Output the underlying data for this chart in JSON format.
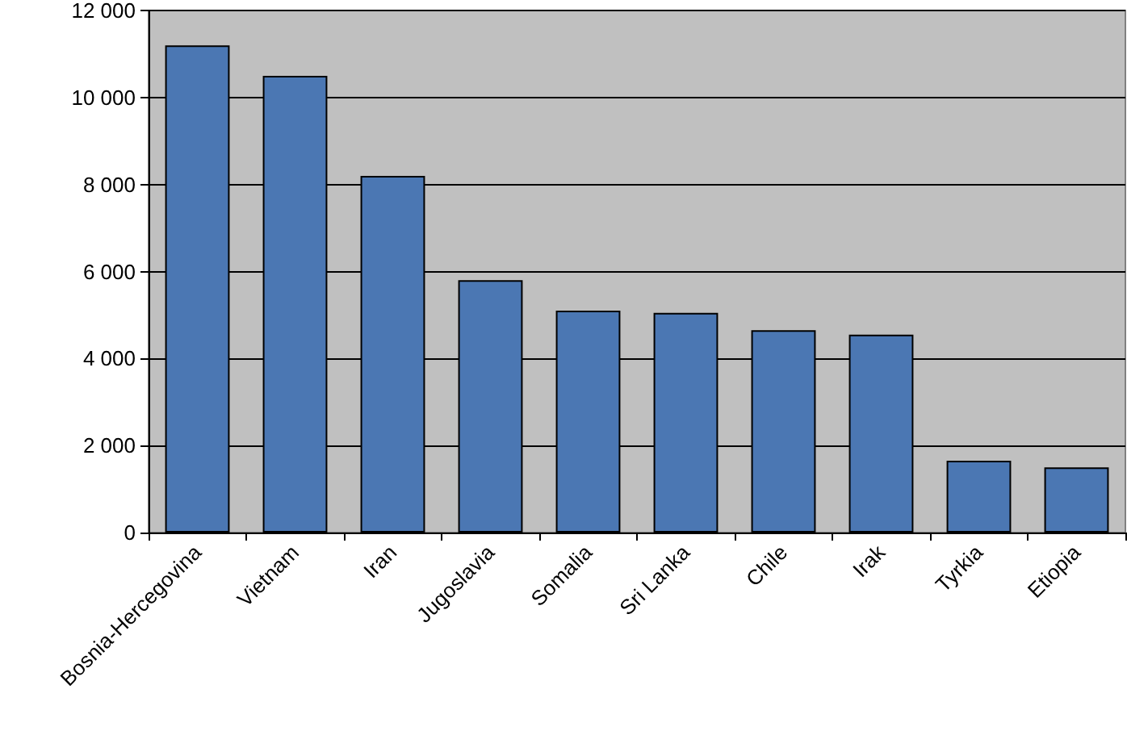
{
  "chart_data": {
    "type": "bar",
    "categories": [
      "Bosnia-Hercegovina",
      "Vietnam",
      "Iran",
      "Jugoslavia",
      "Somalia",
      "Sri Lanka",
      "Chile",
      "Irak",
      "Tyrkia",
      "Etiopia"
    ],
    "values": [
      11200,
      10500,
      8200,
      5800,
      5100,
      5050,
      4650,
      4550,
      1650,
      1500
    ],
    "color": "#4b77b3",
    "ylim": [
      0,
      12000
    ],
    "yticks": [
      0,
      {
        "value": 2000,
        "label": "2 000"
      },
      {
        "value": 4000,
        "label": "4 000"
      },
      {
        "value": 6000,
        "label": "6 000"
      },
      {
        "value": 8000,
        "label": "8 000"
      },
      {
        "value": 10000,
        "label": "10 000"
      },
      {
        "value": 12000,
        "label": "12 000"
      }
    ],
    "grid": "y"
  }
}
